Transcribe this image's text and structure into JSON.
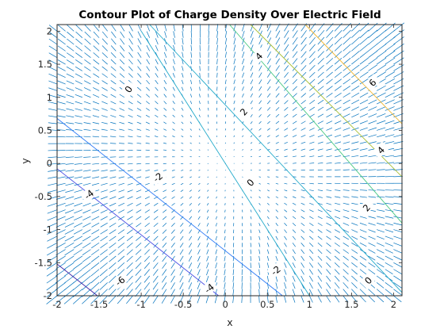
{
  "chart_data": {
    "type": "contour",
    "title": "Contour Plot of Charge Density Over Electric Field",
    "xlabel": "x",
    "ylabel": "y",
    "xlim": [
      -2,
      2.1
    ],
    "ylim": [
      -2,
      2.1
    ],
    "xticks": [
      -2,
      -1.5,
      -1,
      -0.5,
      0,
      0.5,
      1,
      1.5,
      2
    ],
    "yticks": [
      -2,
      -1.5,
      -1,
      -0.5,
      0,
      0.5,
      1,
      1.5,
      2
    ],
    "xtick_labels": [
      "-2",
      "-1.5",
      "-1",
      "-0.5",
      "0",
      "0.5",
      "1",
      "1.5",
      "2"
    ],
    "ytick_labels": [
      "-2",
      "-1.5",
      "-1",
      "-0.5",
      "0",
      "0.5",
      "1",
      "1.5",
      "2"
    ],
    "grid": false,
    "contour_levels": [
      {
        "level": -6,
        "label": "-6",
        "color": "#3e26a8",
        "points": [
          [
            -1.52,
            -2.0
          ],
          [
            -2.0,
            -1.52
          ]
        ],
        "label_at": [
          -1.25,
          -1.78
        ]
      },
      {
        "level": -4,
        "label": "-4",
        "color": "#4449e4",
        "points": [
          [
            -0.08,
            -2.0
          ],
          [
            -2.0,
            -0.08
          ]
        ],
        "label_at": [
          -1.62,
          -0.47
        ]
      },
      {
        "level": -4,
        "label": "-4",
        "color": "#4449e4",
        "points": [
          [
            -0.08,
            -2.0
          ],
          [
            -2.0,
            -0.08
          ]
        ],
        "label_at": [
          -0.19,
          -1.89
        ]
      },
      {
        "level": -2,
        "label": "-2",
        "color": "#2f7cf6",
        "points": [
          [
            0.68,
            -2.0
          ],
          [
            -2.0,
            0.68
          ]
        ],
        "label_at": [
          -0.8,
          -0.21
        ]
      },
      {
        "level": -2,
        "label": "-2",
        "color": "#2f7cf6",
        "points": [
          [
            0.68,
            -2.0
          ],
          [
            -2.0,
            0.68
          ]
        ],
        "label_at": [
          0.6,
          -1.62
        ]
      },
      {
        "level": 0,
        "label": "0",
        "color": "#23aaca",
        "points": [
          [
            1.0,
            -2.0
          ],
          [
            -1.0,
            2.0
          ]
        ],
        "label_at": [
          -1.15,
          1.12
        ]
      },
      {
        "level": 0,
        "label": "0",
        "color": "#23aaca",
        "points": [
          [
            2.1,
            -1.95
          ],
          [
            -0.9,
            2.1
          ]
        ],
        "label_at": [
          0.3,
          -0.29
        ]
      },
      {
        "level": 0,
        "label": "0",
        "color": "#23aaca",
        "points": [
          [
            2.1,
            -1.95
          ],
          [
            -0.9,
            2.1
          ]
        ],
        "label_at": [
          1.7,
          -1.77
        ]
      },
      {
        "level": 2,
        "label": "2",
        "color": "#48c883",
        "points": [
          [
            2.1,
            -0.9
          ],
          [
            0.05,
            2.1
          ]
        ],
        "label_at": [
          0.22,
          0.78
        ]
      },
      {
        "level": 2,
        "label": "2",
        "color": "#48c883",
        "points": [
          [
            2.1,
            -0.9
          ],
          [
            0.05,
            2.1
          ]
        ],
        "label_at": [
          1.68,
          -0.67
        ]
      },
      {
        "level": 4,
        "label": "4",
        "color": "#a9bf36",
        "points": [
          [
            2.1,
            -0.2
          ],
          [
            0.3,
            2.1
          ]
        ],
        "label_at": [
          0.4,
          1.62
        ]
      },
      {
        "level": 4,
        "label": "4",
        "color": "#a9bf36",
        "points": [
          [
            2.1,
            -0.2
          ],
          [
            0.3,
            2.1
          ]
        ],
        "label_at": [
          1.85,
          0.2
        ]
      },
      {
        "level": 6,
        "label": "6",
        "color": "#f0b834",
        "points": [
          [
            2.1,
            0.6
          ],
          [
            0.95,
            2.1
          ]
        ],
        "label_at": [
          1.75,
          1.22
        ]
      }
    ],
    "vector_field": {
      "description_free": true,
      "grid_x_range": [
        -2,
        2
      ],
      "grid_y_range": [
        -2,
        2
      ],
      "grid_step": 0.1,
      "color": "#0072bd"
    }
  }
}
